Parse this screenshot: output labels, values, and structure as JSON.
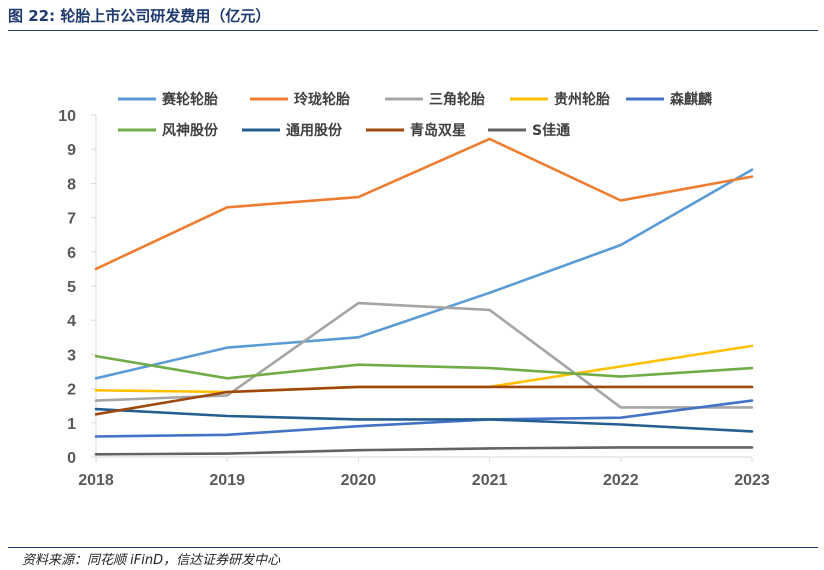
{
  "header": {
    "title": "图 22: 轮胎上市公司研发费用（亿元）"
  },
  "footer": {
    "source": "资料来源：同花顺 iFinD，信达证券研发中心"
  },
  "colors": {
    "header_text": "#1f3a6e",
    "axis": "#d9d9d9",
    "tick_text": "#595959"
  },
  "chart_data": {
    "type": "line",
    "categories": [
      "2018",
      "2019",
      "2020",
      "2021",
      "2022",
      "2023"
    ],
    "ylim": [
      0,
      10
    ],
    "yticks": [
      0,
      1,
      2,
      3,
      4,
      5,
      6,
      7,
      8,
      9,
      10
    ],
    "grid": false,
    "legend_position": "top",
    "series": [
      {
        "name": "赛轮轮胎",
        "color": "#5b9bd5",
        "values": [
          2.3,
          3.2,
          3.5,
          4.8,
          6.2,
          8.4
        ]
      },
      {
        "name": "玲珑轮胎",
        "color": "#ed7d31",
        "values": [
          5.5,
          7.3,
          7.6,
          9.3,
          7.5,
          8.2
        ]
      },
      {
        "name": "三角轮胎",
        "color": "#a5a5a5",
        "values": [
          1.65,
          1.8,
          4.5,
          4.3,
          1.45,
          1.45
        ]
      },
      {
        "name": "贵州轮胎",
        "color": "#ffc000",
        "values": [
          1.95,
          1.9,
          2.05,
          2.05,
          2.65,
          3.25
        ]
      },
      {
        "name": "森麒麟",
        "color": "#4472c4",
        "values": [
          0.6,
          0.65,
          0.9,
          1.1,
          1.15,
          1.65
        ]
      },
      {
        "name": "风神股份",
        "color": "#70ad47",
        "values": [
          2.95,
          2.3,
          2.7,
          2.6,
          2.35,
          2.6
        ]
      },
      {
        "name": "通用股份",
        "color": "#255e91",
        "values": [
          1.4,
          1.2,
          1.1,
          1.1,
          0.95,
          0.75
        ]
      },
      {
        "name": "青岛双星",
        "color": "#9e480e",
        "values": [
          1.25,
          1.9,
          2.05,
          2.05,
          2.05,
          2.05
        ]
      },
      {
        "name": "S佳通",
        "color": "#636363",
        "values": [
          0.08,
          0.1,
          0.2,
          0.25,
          0.28,
          0.28
        ]
      }
    ]
  }
}
